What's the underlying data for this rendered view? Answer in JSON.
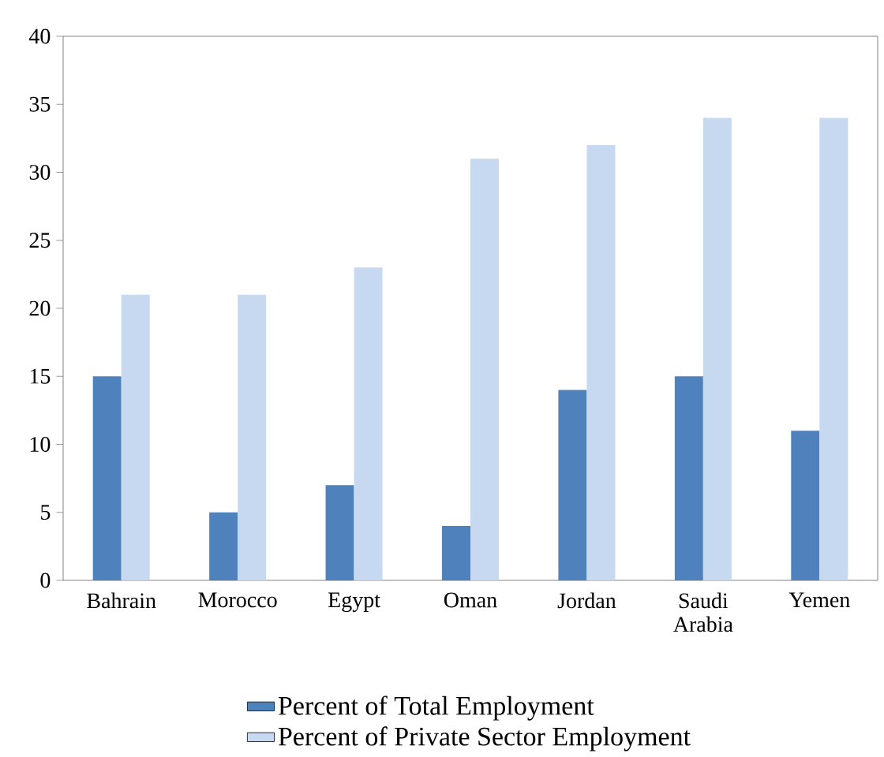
{
  "chart_data": {
    "type": "bar",
    "categories": [
      "Bahrain",
      "Morocco",
      "Egypt",
      "Oman",
      "Jordan",
      "Saudi Arabia",
      "Yemen"
    ],
    "series": [
      {
        "name": "Percent of Total Employment",
        "color": "#4f81bd",
        "values": [
          15,
          5,
          7,
          4,
          14,
          15,
          11
        ]
      },
      {
        "name": "Percent of Private Sector Employment",
        "color": "#c6d9f1",
        "values": [
          21,
          21,
          23,
          31,
          32,
          34,
          34
        ]
      }
    ],
    "ylim": [
      0,
      40
    ],
    "yticks": [
      0,
      5,
      10,
      15,
      20,
      25,
      30,
      35,
      40
    ],
    "grid": false,
    "legend": "bottom"
  }
}
